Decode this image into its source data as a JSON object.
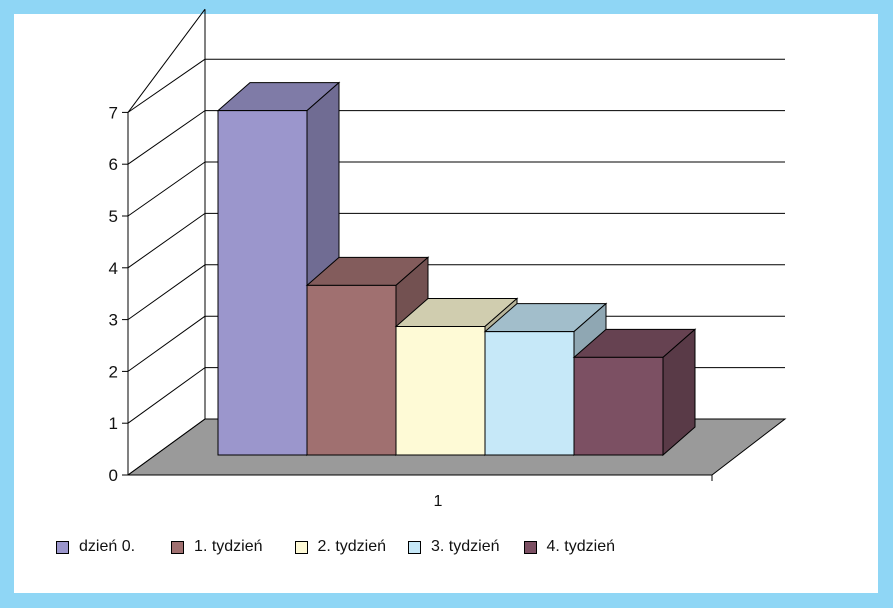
{
  "chart_data": {
    "type": "bar",
    "categories": [
      "1"
    ],
    "series": [
      {
        "name": "dzień 0.",
        "values": [
          6.7
        ],
        "color": "#9b96cc"
      },
      {
        "name": "1. tydzień",
        "values": [
          3.3
        ],
        "color": "#a07070"
      },
      {
        "name": "2. tydzień",
        "values": [
          2.5
        ],
        "color": "#fefad6"
      },
      {
        "name": "3. tydzień",
        "values": [
          2.4
        ],
        "color": "#c6e8f8"
      },
      {
        "name": "4. tydzień",
        "values": [
          1.9
        ],
        "color": "#7c5063"
      }
    ],
    "yticks": [
      "0",
      "1",
      "2",
      "3",
      "4",
      "5",
      "6",
      "7"
    ],
    "ylim": [
      0,
      7
    ],
    "grid": true,
    "three_d": true,
    "legend_position": "bottom",
    "title": "",
    "xlabel": "",
    "ylabel": "",
    "frame_color": "#8fd6f5",
    "floor_color": "#9a9a9a"
  }
}
